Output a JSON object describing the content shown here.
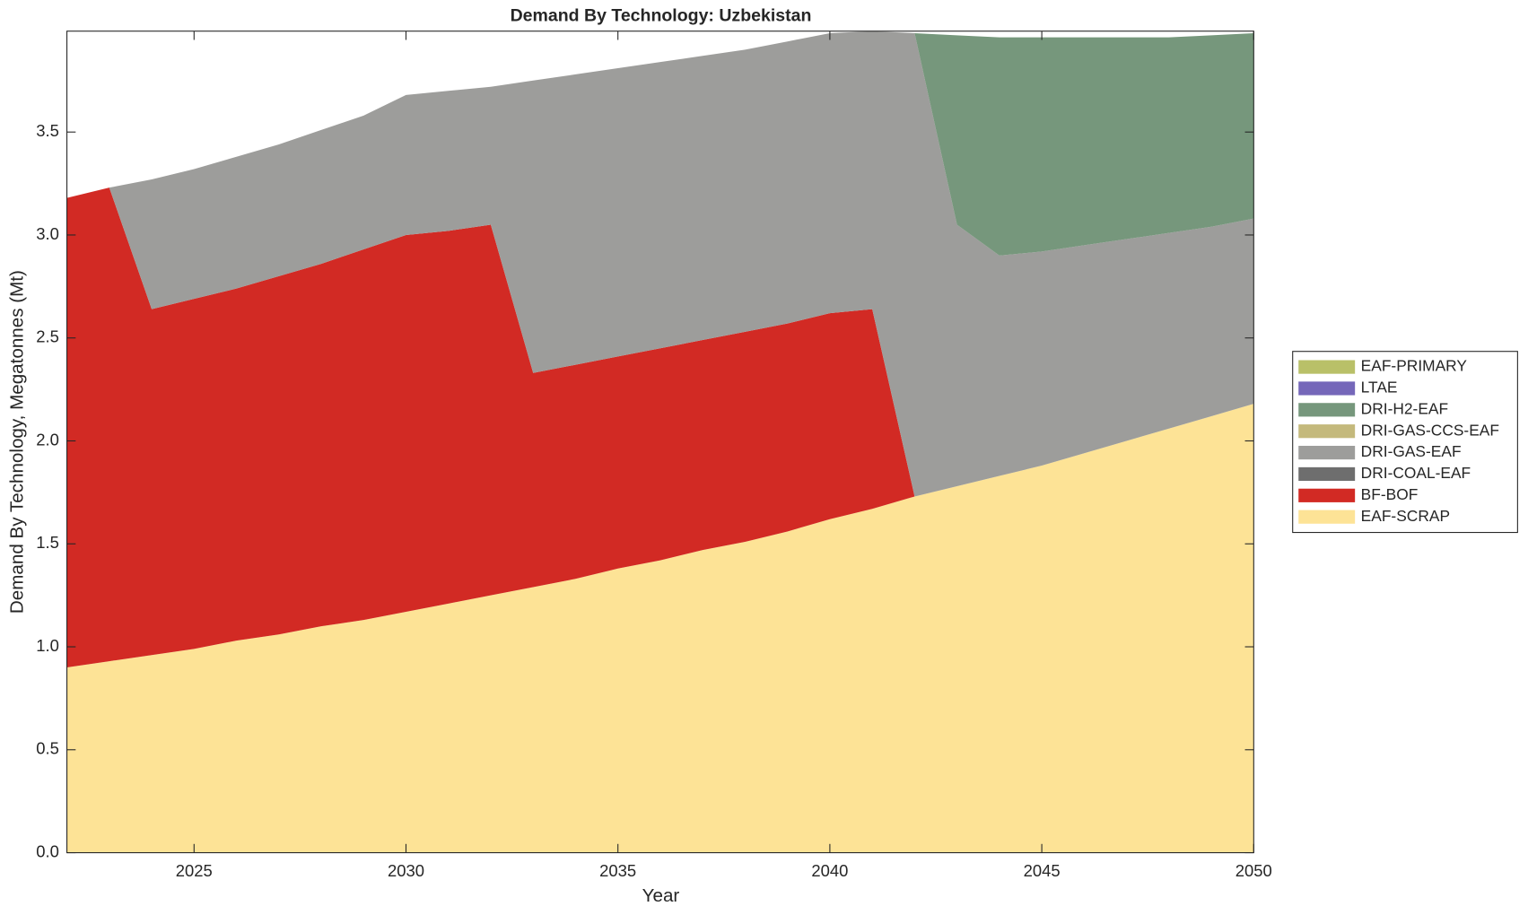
{
  "chart_data": {
    "type": "stacked-area",
    "title": "Demand By Technology: Uzbekistan",
    "x_label": "Year",
    "y_label": "Demand By Technology, Megatonnes (Mt)",
    "x": [
      2022,
      2023,
      2024,
      2025,
      2026,
      2027,
      2028,
      2029,
      2030,
      2031,
      2032,
      2033,
      2034,
      2035,
      2036,
      2037,
      2038,
      2039,
      2040,
      2041,
      2042,
      2043,
      2044,
      2045,
      2046,
      2047,
      2048,
      2049,
      2050
    ],
    "xlim": [
      2022,
      2050
    ],
    "xticks": [
      2025,
      2030,
      2035,
      2040,
      2045,
      2050
    ],
    "ylim": [
      0,
      3.99
    ],
    "yticks": [
      {
        "value": 0,
        "label": "0.0"
      },
      0.5,
      {
        "value": 1,
        "label": "1.0"
      },
      1.5,
      {
        "value": 2,
        "label": "2.0"
      },
      2.5,
      {
        "value": 3,
        "label": "3.0"
      },
      3.5
    ],
    "legend_position": "right",
    "series": [
      {
        "name": "EAF-SCRAP",
        "color": "#fde396",
        "values": [
          0.9,
          0.93,
          0.96,
          0.99,
          1.03,
          1.06,
          1.1,
          1.13,
          1.17,
          1.21,
          1.25,
          1.29,
          1.33,
          1.38,
          1.42,
          1.47,
          1.51,
          1.56,
          1.62,
          1.67,
          1.73,
          1.78,
          1.83,
          1.88,
          1.94,
          2.0,
          2.06,
          2.12,
          2.18
        ]
      },
      {
        "name": "BF-BOF",
        "color": "#d22a24",
        "values": [
          2.28,
          2.3,
          1.68,
          1.7,
          1.71,
          1.74,
          1.76,
          1.8,
          1.83,
          1.81,
          1.8,
          1.04,
          1.04,
          1.03,
          1.03,
          1.02,
          1.02,
          1.01,
          1.0,
          0.97,
          0,
          0,
          0,
          0,
          0,
          0,
          0,
          0,
          0
        ]
      },
      {
        "name": "DRI-COAL-EAF",
        "color": "#6e6e6e",
        "values": [
          0,
          0,
          0,
          0,
          0,
          0,
          0,
          0,
          0,
          0,
          0,
          0,
          0,
          0,
          0,
          0,
          0,
          0,
          0,
          0,
          0,
          0,
          0,
          0,
          0,
          0,
          0,
          0,
          0
        ]
      },
      {
        "name": "DRI-GAS-EAF",
        "color": "#9d9d9b",
        "values": [
          0,
          0,
          0.63,
          0.63,
          0.64,
          0.64,
          0.65,
          0.65,
          0.68,
          0.68,
          0.67,
          1.42,
          1.41,
          1.4,
          1.39,
          1.38,
          1.37,
          1.37,
          1.36,
          1.35,
          2.25,
          1.27,
          1.07,
          1.04,
          1.01,
          0.98,
          0.95,
          0.92,
          0.9
        ]
      },
      {
        "name": "DRI-GAS-CCS-EAF",
        "color": "#c4b97c",
        "values": [
          0,
          0,
          0,
          0,
          0,
          0,
          0,
          0,
          0,
          0,
          0,
          0,
          0,
          0,
          0,
          0,
          0,
          0,
          0,
          0,
          0,
          0,
          0,
          0,
          0,
          0,
          0,
          0,
          0
        ]
      },
      {
        "name": "DRI-H2-EAF",
        "color": "#76977c",
        "values": [
          0,
          0,
          0,
          0,
          0,
          0,
          0,
          0,
          0,
          0,
          0,
          0,
          0,
          0,
          0,
          0,
          0,
          0,
          0,
          0,
          0,
          0.92,
          1.06,
          1.04,
          1.01,
          0.98,
          0.95,
          0.93,
          0.9
        ]
      },
      {
        "name": "LTAE",
        "color": "#7567b9",
        "values": [
          0,
          0,
          0,
          0,
          0,
          0,
          0,
          0,
          0,
          0,
          0,
          0,
          0,
          0,
          0,
          0,
          0,
          0,
          0,
          0,
          0,
          0,
          0,
          0,
          0,
          0,
          0,
          0,
          0
        ]
      },
      {
        "name": "EAF-PRIMARY",
        "color": "#b9c068",
        "values": [
          0,
          0,
          0,
          0,
          0,
          0,
          0,
          0,
          0,
          0,
          0,
          0,
          0,
          0,
          0,
          0,
          0,
          0,
          0,
          0,
          0,
          0,
          0,
          0,
          0,
          0,
          0,
          0,
          0
        ]
      }
    ]
  }
}
